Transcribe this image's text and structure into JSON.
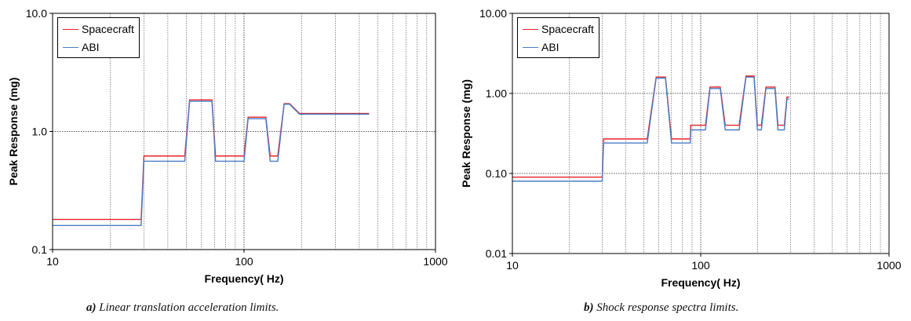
{
  "chart_data": [
    {
      "type": "line",
      "xlabel": "Frequency( Hz)",
      "ylabel": "Peak Response (mg)",
      "x_scale": "log",
      "y_scale": "log",
      "xlim": [
        10,
        1000
      ],
      "ylim": [
        0.1,
        10
      ],
      "x_ticks": [
        "10",
        "100",
        "1000"
      ],
      "y_ticks": [
        "0.1",
        "1.0",
        "10.0"
      ],
      "grid": true,
      "legend": "top-left",
      "series": [
        {
          "name": "Spacecraft",
          "color": "#e8222a",
          "x": [
            10,
            29,
            30,
            49,
            52,
            68,
            71,
            100,
            105,
            130,
            137,
            150,
            162,
            173,
            195,
            205,
            450
          ],
          "y": [
            0.18,
            0.18,
            0.62,
            0.62,
            1.85,
            1.85,
            0.62,
            0.62,
            1.32,
            1.32,
            0.62,
            0.62,
            1.72,
            1.72,
            1.42,
            1.42,
            1.42
          ]
        },
        {
          "name": "ABI",
          "color": "#4a7cc4",
          "x": [
            10,
            29,
            30,
            49,
            52,
            68,
            71,
            100,
            105,
            130,
            137,
            150,
            162,
            173,
            195,
            205,
            450
          ],
          "y": [
            0.16,
            0.16,
            0.56,
            0.56,
            1.8,
            1.8,
            0.56,
            0.56,
            1.28,
            1.28,
            0.56,
            0.56,
            1.7,
            1.7,
            1.4,
            1.4,
            1.4
          ]
        }
      ],
      "caption_label": "a)",
      "caption_text": "Linear translation acceleration limits."
    },
    {
      "type": "line",
      "xlabel": "Frequency( Hz)",
      "ylabel": "Peak Response (mg)",
      "x_scale": "log",
      "y_scale": "log",
      "xlim": [
        10,
        1000
      ],
      "ylim": [
        0.01,
        10
      ],
      "x_ticks": [
        "10",
        "100",
        "1000"
      ],
      "y_ticks": [
        "0.01",
        "0.10",
        "1.00",
        "10.00"
      ],
      "grid": true,
      "legend": "top-left",
      "series": [
        {
          "name": "Spacecraft",
          "color": "#e8222a",
          "x": [
            10,
            30,
            30.5,
            52,
            58,
            65,
            70,
            88,
            88.5,
            106,
            112,
            127,
            135,
            160,
            174,
            192,
            200,
            210,
            222,
            248,
            257,
            278,
            287,
            295
          ],
          "y": [
            0.09,
            0.09,
            0.27,
            0.27,
            1.6,
            1.6,
            0.27,
            0.27,
            0.4,
            0.4,
            1.2,
            1.2,
            0.4,
            0.4,
            1.65,
            1.65,
            0.4,
            0.4,
            1.2,
            1.2,
            0.4,
            0.4,
            0.9,
            0.9
          ]
        },
        {
          "name": "ABI",
          "color": "#4a7cc4",
          "x": [
            10,
            30,
            30.5,
            52,
            58,
            65,
            70,
            88,
            88.5,
            106,
            112,
            127,
            135,
            160,
            174,
            192,
            200,
            210,
            222,
            248,
            257,
            278,
            287,
            295
          ],
          "y": [
            0.08,
            0.08,
            0.24,
            0.24,
            1.55,
            1.55,
            0.24,
            0.24,
            0.35,
            0.35,
            1.15,
            1.15,
            0.35,
            0.35,
            1.6,
            1.6,
            0.35,
            0.35,
            1.15,
            1.15,
            0.35,
            0.35,
            0.85,
            0.85
          ]
        }
      ],
      "caption_label": "b)",
      "caption_text": "Shock response spectra limits."
    }
  ]
}
